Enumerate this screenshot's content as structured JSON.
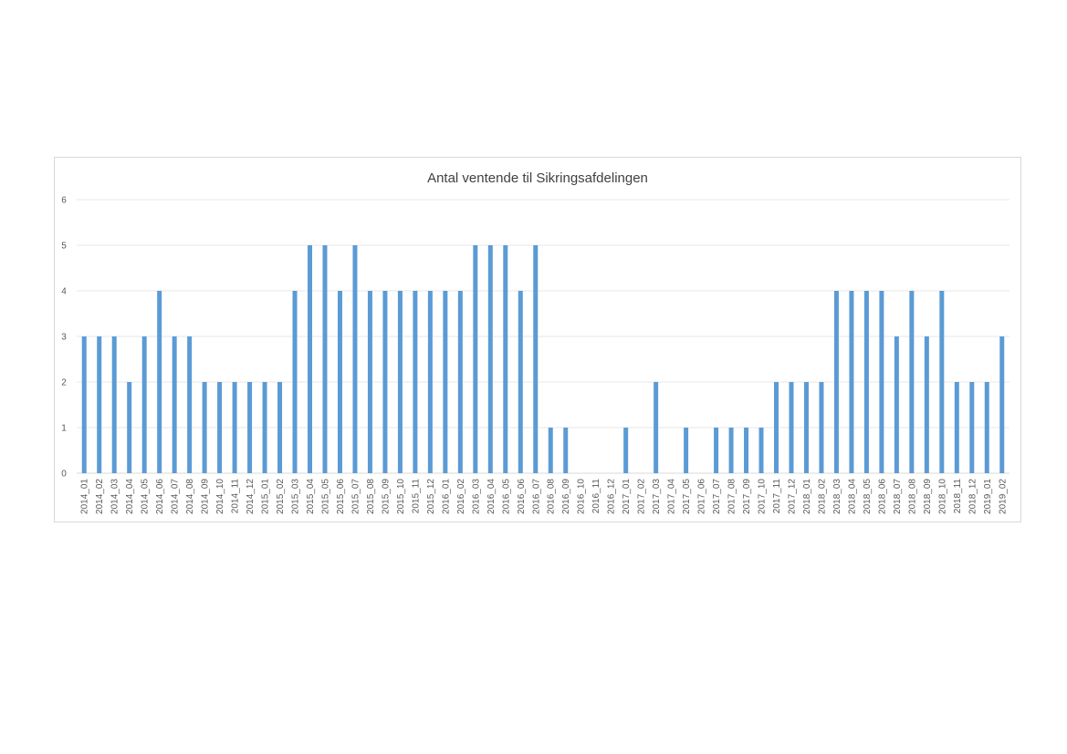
{
  "chart_data": {
    "type": "bar",
    "title": "Antal ventende til Sikringsafdelingen",
    "xlabel": "",
    "ylabel": "",
    "ylim": [
      0,
      6
    ],
    "yticks": [
      0,
      1,
      2,
      3,
      4,
      5,
      6
    ],
    "grid": true,
    "legend": "none",
    "bar_color": "#5b9bd5",
    "categories": [
      "2014_01",
      "2014_02",
      "2014_03",
      "2014_04",
      "2014_05",
      "2014_06",
      "2014_07",
      "2014_08",
      "2014_09",
      "2014_10",
      "2014_11",
      "2014_12",
      "2015_01",
      "2015_02",
      "2015_03",
      "2015_04",
      "2015_05",
      "2015_06",
      "2015_07",
      "2015_08",
      "2015_09",
      "2015_10",
      "2015_11",
      "2015_12",
      "2016_01",
      "2016_02",
      "2016_03",
      "2016_04",
      "2016_05",
      "2016_06",
      "2016_07",
      "2016_08",
      "2016_09",
      "2016_10",
      "2016_11",
      "2016_12",
      "2017_01",
      "2017_02",
      "2017_03",
      "2017_04",
      "2017_05",
      "2017_06",
      "2017_07",
      "2017_08",
      "2017_09",
      "2017_10",
      "2017_11",
      "2017_12",
      "2018_01",
      "2018_02",
      "2018_03",
      "2018_04",
      "2018_05",
      "2018_06",
      "2018_07",
      "2018_08",
      "2018_09",
      "2018_10",
      "2018_11",
      "2018_12",
      "2019_01",
      "2019_02"
    ],
    "values": [
      3,
      3,
      3,
      2,
      3,
      4,
      3,
      3,
      2,
      2,
      2,
      2,
      2,
      2,
      4,
      5,
      5,
      4,
      5,
      4,
      4,
      4,
      4,
      4,
      4,
      4,
      5,
      5,
      5,
      4,
      5,
      1,
      1,
      0,
      0,
      0,
      1,
      0,
      2,
      0,
      1,
      0,
      1,
      1,
      1,
      1,
      2,
      2,
      2,
      2,
      4,
      4,
      4,
      4,
      3,
      4,
      3,
      4,
      2,
      2,
      2,
      3
    ]
  }
}
